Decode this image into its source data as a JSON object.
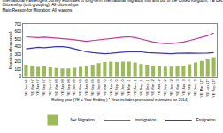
{
  "chart_data": {
    "type": "bar",
    "title": "International Passengers Survey estimates of long-term international migration into and out of the United Kingdom, YE Dec 06 to YE Sep 14",
    "subtitle": "Citizenship (unit grouping): All citizenships\nMain Reason for Migration: All reasons",
    "x_label": "Rolling year (YE = Year Ending ) * Year includes provisional estimates for 2014)",
    "y_label": "Migration (thousands)",
    "categories": [
      "YE Dec 06",
      "YE Mar 07",
      "YE Jun 07",
      "YE Sep 07",
      "YE Dec 07",
      "YE Mar 08",
      "YE Jun 08",
      "YE Sep 08",
      "YE Dec 08",
      "YE Mar 09",
      "YE Jun 09",
      "YE Sep 09",
      "YE Dec 09",
      "YE Mar 10",
      "YE Jun 10",
      "YE Sep 10",
      "YE Dec 10",
      "YE Mar 11",
      "YE Jun 11",
      "YE Sep 11",
      "YE Dec 11",
      "YE Mar 12",
      "YE Jun 12",
      "YE Sep 12",
      "YE Dec 12",
      "YE Mar 13",
      "YE Jun 13",
      "YE Sep 13",
      "YE Dec 13",
      "YE Mar 14*",
      "YE Jun 14*",
      "YE Sep 14*"
    ],
    "series": [
      {
        "name": "Net Migration",
        "type": "bar",
        "color": "#9bbb59",
        "values": [
          160,
          145,
          130,
          140,
          125,
          115,
          110,
          110,
          120,
          130,
          140,
          160,
          180,
          195,
          200,
          195,
          200,
          200,
          190,
          170,
          160,
          145,
          140,
          135,
          135,
          140,
          145,
          165,
          190,
          210,
          230,
          260
        ]
      },
      {
        "name": "Immigration",
        "type": "line",
        "color": "#cc3399",
        "values": [
          530,
          525,
          520,
          525,
          520,
          515,
          510,
          500,
          490,
          480,
          470,
          480,
          490,
          500,
          510,
          515,
          525,
          530,
          520,
          500,
          480,
          460,
          450,
          440,
          440,
          450,
          460,
          480,
          500,
          520,
          545,
          580
        ]
      },
      {
        "name": "Emigration",
        "type": "line",
        "color": "#3333cc",
        "values": [
          370,
          380,
          390,
          385,
          395,
          400,
          400,
          390,
          370,
          350,
          330,
          320,
          310,
          305,
          310,
          320,
          325,
          330,
          330,
          330,
          320,
          315,
          310,
          305,
          305,
          310,
          315,
          315,
          310,
          310,
          315,
          320
        ]
      }
    ],
    "ylim": [
      0,
      700
    ],
    "yticks": [
      0,
      100,
      200,
      300,
      400,
      500,
      600,
      700
    ],
    "grid": false,
    "legend": "bottom right"
  }
}
